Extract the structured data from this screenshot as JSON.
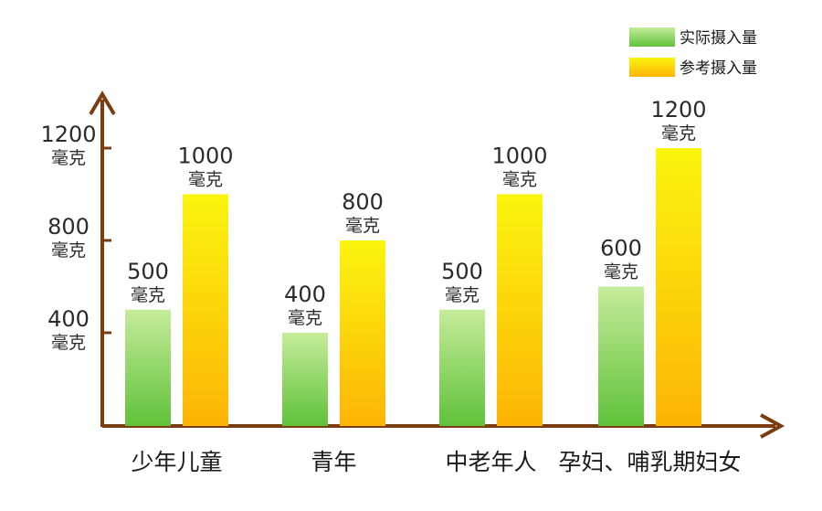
{
  "chart_data": {
    "type": "bar",
    "unit": "毫克",
    "categories": [
      "少年儿童",
      "青年",
      "中老年人",
      "孕妇、哺乳期妇女"
    ],
    "series": [
      {
        "name": "实际摄入量",
        "values": [
          500,
          400,
          500,
          600
        ]
      },
      {
        "name": "参考摄入量",
        "values": [
          1000,
          800,
          1000,
          1200
        ]
      }
    ],
    "y_ticks": [
      {
        "value": 400,
        "label": "400",
        "unit": "毫克"
      },
      {
        "value": 800,
        "label": "800",
        "unit": "毫克"
      },
      {
        "value": 1200,
        "label": "1200",
        "unit": "毫克"
      }
    ],
    "legend_position": "top-right",
    "grid": false
  },
  "colors": {
    "axis": "#7a3d12",
    "actual_top": "#c6ec9a",
    "actual_bottom": "#5fc23a",
    "reference_top": "#fbf50f",
    "reference_bottom": "#fdb405"
  }
}
